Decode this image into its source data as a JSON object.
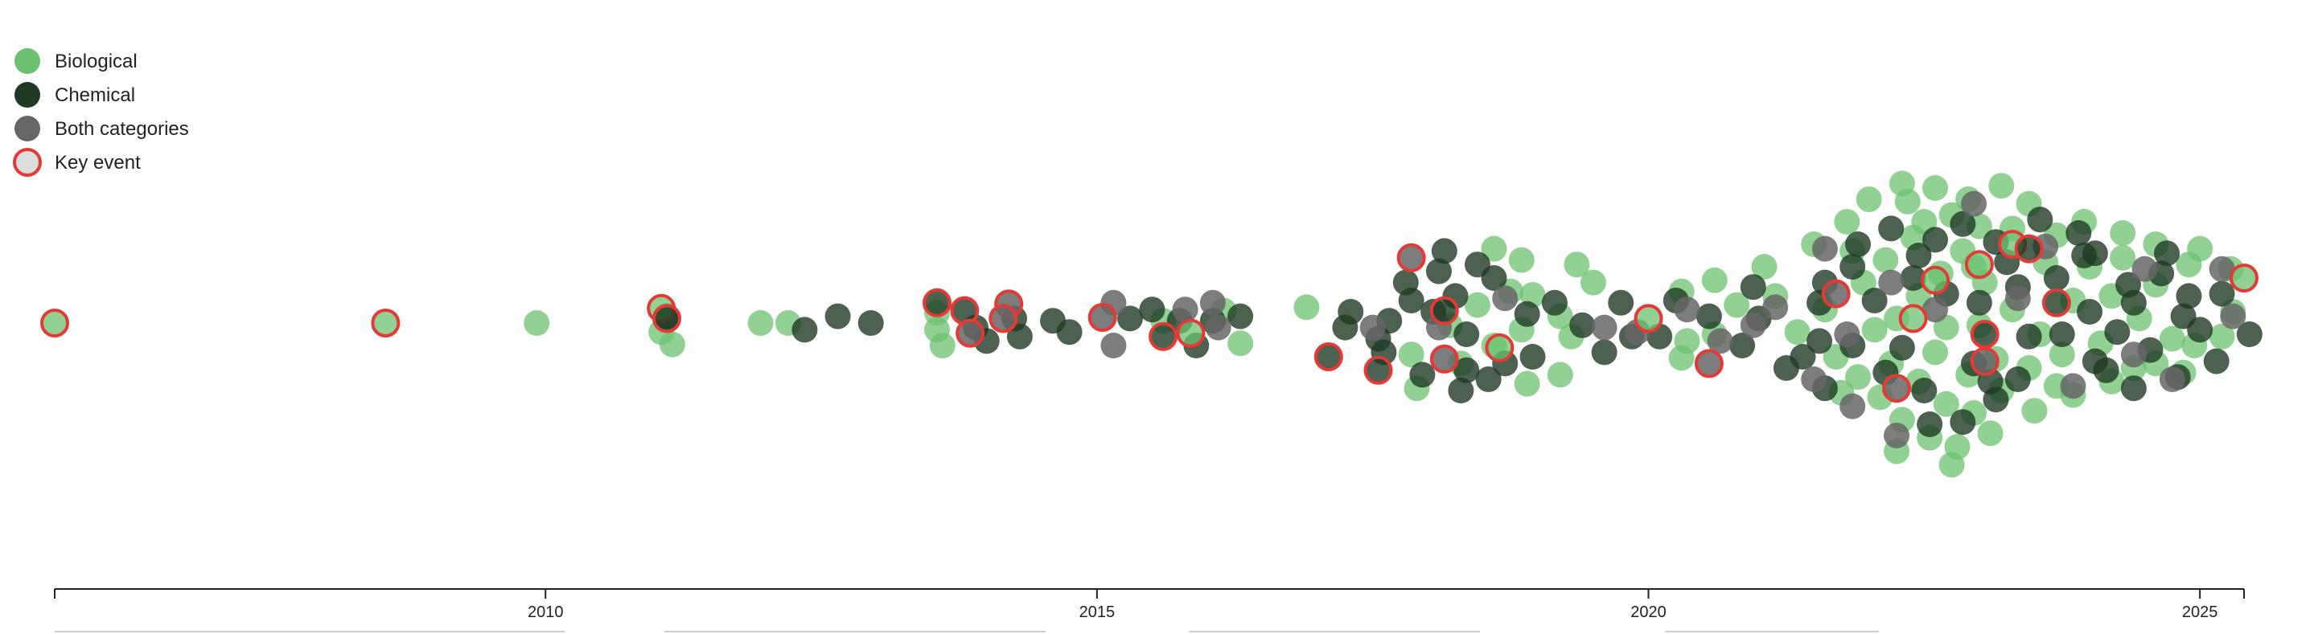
{
  "chart_data": {
    "type": "scatter",
    "title": "",
    "xlabel": "",
    "ylabel": "",
    "xlim": [
      2005.55,
      2025.4
    ],
    "x_ticks": [
      2010,
      2015,
      2020,
      2025
    ],
    "x_tick_labels": [
      "2010",
      "2015",
      "2020",
      "2025"
    ],
    "legend": {
      "placement": "top-left",
      "entries": [
        {
          "key": "bio",
          "label": "Biological"
        },
        {
          "key": "chem",
          "label": "Chemical"
        },
        {
          "key": "both",
          "label": "Both categories"
        },
        {
          "key": "key",
          "label": "Key event"
        }
      ]
    },
    "colors": {
      "bio": "#6cc16f",
      "chem": "#1f3a24",
      "both": "#666666",
      "key_outline": "#e53935",
      "key_fill_legend": "#dddddd",
      "axis": "#222222"
    },
    "series": [
      {
        "key": "bio",
        "name": "Biological",
        "values": [
          [
            2009.92,
            0
          ],
          [
            2011.05,
            -0.4
          ],
          [
            2011.15,
            -0.95
          ],
          [
            2011.95,
            0
          ],
          [
            2012.2,
            0
          ],
          [
            2013.55,
            -0.3
          ],
          [
            2013.55,
            0.45
          ],
          [
            2013.6,
            -1.0
          ],
          [
            2015.6,
            0.1
          ],
          [
            2016.3,
            -0.9
          ],
          [
            2016.15,
            0.55
          ],
          [
            2016.9,
            0.7
          ],
          [
            2017.9,
            -2.9
          ],
          [
            2017.85,
            -1.4
          ],
          [
            2018.2,
            -0.1
          ],
          [
            2018.45,
            0.8
          ],
          [
            2018.6,
            -1.0
          ],
          [
            2018.75,
            1.4
          ],
          [
            2018.9,
            -2.7
          ],
          [
            2018.95,
            1.25
          ],
          [
            2019.2,
            0.3
          ],
          [
            2019.3,
            -0.6
          ],
          [
            2019.35,
            2.6
          ],
          [
            2018.6,
            3.3
          ],
          [
            2018.85,
            2.8
          ],
          [
            2019.5,
            1.8
          ],
          [
            2018.3,
            -1.8
          ],
          [
            2018.85,
            -0.3
          ],
          [
            2019.2,
            -2.3
          ],
          [
            2020.3,
            1.4
          ],
          [
            2020.6,
            1.9
          ],
          [
            2020.35,
            -0.8
          ],
          [
            2020.3,
            -1.55
          ],
          [
            2020.6,
            -0.5
          ],
          [
            2020.8,
            0.8
          ],
          [
            2021.05,
            2.5
          ],
          [
            2021.5,
            3.5
          ],
          [
            2021.8,
            4.5
          ],
          [
            2022.0,
            5.5
          ],
          [
            2022.3,
            6.2
          ],
          [
            2022.6,
            6.0
          ],
          [
            2022.9,
            5.5
          ],
          [
            2023.2,
            6.1
          ],
          [
            2023.45,
            5.3
          ],
          [
            2021.7,
            -1.5
          ],
          [
            2021.9,
            -2.4
          ],
          [
            2022.1,
            -3.3
          ],
          [
            2022.3,
            -4.3
          ],
          [
            2022.55,
            -5.1
          ],
          [
            2022.8,
            -5.5
          ],
          [
            2023.1,
            -4.9
          ],
          [
            2023.5,
            -3.9
          ],
          [
            2023.85,
            -3.2
          ],
          [
            2024.2,
            -2.6
          ],
          [
            2024.6,
            -1.8
          ],
          [
            2024.95,
            -1.0
          ],
          [
            2025.2,
            -0.6
          ],
          [
            2025.3,
            0.5
          ],
          [
            2025.28,
            2.4
          ],
          [
            2025.0,
            3.3
          ],
          [
            2024.6,
            3.5
          ],
          [
            2024.3,
            4.0
          ],
          [
            2023.95,
            4.5
          ],
          [
            2023.7,
            3.9
          ],
          [
            2022.25,
            0.2
          ],
          [
            2022.45,
            1.2
          ],
          [
            2022.65,
            2.2
          ],
          [
            2022.85,
            3.2
          ],
          [
            2023.05,
            1.8
          ],
          [
            2023.3,
            0.6
          ],
          [
            2023.55,
            -0.5
          ],
          [
            2023.75,
            -1.4
          ],
          [
            2022.6,
            -1.3
          ],
          [
            2022.9,
            -2.3
          ],
          [
            2022.7,
            -0.2
          ],
          [
            2023.0,
            -0.1
          ],
          [
            2021.95,
            1.8
          ],
          [
            2022.15,
            2.8
          ],
          [
            2022.4,
            3.8
          ],
          [
            2022.75,
            4.8
          ],
          [
            2023.3,
            4.2
          ],
          [
            2023.6,
            2.7
          ],
          [
            2024.0,
            2.5
          ],
          [
            2024.2,
            1.2
          ],
          [
            2024.45,
            0.2
          ],
          [
            2024.75,
            -0.7
          ],
          [
            2024.4,
            -2.0
          ],
          [
            2023.2,
            -3.0
          ],
          [
            2022.95,
            -4.0
          ],
          [
            2022.2,
            -1.8
          ],
          [
            2021.6,
            0.6
          ],
          [
            2021.35,
            -0.4
          ],
          [
            2021.15,
            1.2
          ],
          [
            2022.45,
            -2.6
          ],
          [
            2022.05,
            -0.3
          ],
          [
            2023.45,
            -2.0
          ],
          [
            2024.1,
            -0.9
          ],
          [
            2024.6,
            1.7
          ],
          [
            2024.9,
            2.6
          ],
          [
            2022.5,
            4.5
          ],
          [
            2023.0,
            4.3
          ],
          [
            2021.85,
            3.2
          ],
          [
            2022.7,
            -3.6
          ],
          [
            2023.7,
            -2.8
          ],
          [
            2024.3,
            2.9
          ],
          [
            2022.35,
            5.4
          ],
          [
            2022.95,
            2.5
          ],
          [
            2023.15,
            -1.6
          ],
          [
            2021.75,
            -3.1
          ],
          [
            2024.85,
            -2.2
          ],
          [
            2022.25,
            -5.7
          ],
          [
            2022.75,
            -6.3
          ],
          [
            2023.85,
            1.0
          ]
        ]
      },
      {
        "key": "chem",
        "name": "Chemical",
        "values": [
          [
            2011.1,
            0.3
          ],
          [
            2012.35,
            -0.3
          ],
          [
            2012.65,
            0.3
          ],
          [
            2012.95,
            0
          ],
          [
            2013.9,
            -0.2
          ],
          [
            2014.0,
            -0.8
          ],
          [
            2014.25,
            0.2
          ],
          [
            2014.3,
            -0.6
          ],
          [
            2014.6,
            0.1
          ],
          [
            2014.75,
            -0.4
          ],
          [
            2015.3,
            0.2
          ],
          [
            2015.5,
            0.6
          ],
          [
            2015.75,
            0.1
          ],
          [
            2015.9,
            -1.0
          ],
          [
            2016.05,
            0.1
          ],
          [
            2016.3,
            0.3
          ],
          [
            2017.25,
            -0.2
          ],
          [
            2017.3,
            0.5
          ],
          [
            2017.55,
            -0.7
          ],
          [
            2017.65,
            0.1
          ],
          [
            2017.85,
            1.0
          ],
          [
            2018.1,
            2.3
          ],
          [
            2018.25,
            1.2
          ],
          [
            2018.35,
            -0.5
          ],
          [
            2017.6,
            -1.3
          ],
          [
            2017.95,
            -2.3
          ],
          [
            2018.3,
            -3.0
          ],
          [
            2018.55,
            -2.5
          ],
          [
            2018.7,
            -1.8
          ],
          [
            2018.95,
            -1.5
          ],
          [
            2019.15,
            0.9
          ],
          [
            2019.4,
            -0.1
          ],
          [
            2019.6,
            -1.3
          ],
          [
            2019.75,
            0.9
          ],
          [
            2019.85,
            -0.6
          ],
          [
            2018.05,
            0.5
          ],
          [
            2018.6,
            2.0
          ],
          [
            2018.9,
            0.4
          ],
          [
            2017.8,
            1.8
          ],
          [
            2018.15,
            3.2
          ],
          [
            2018.45,
            2.6
          ],
          [
            2018.35,
            -2.1
          ],
          [
            2020.1,
            -0.6
          ],
          [
            2020.25,
            1.0
          ],
          [
            2020.55,
            0.3
          ],
          [
            2020.85,
            -1.0
          ],
          [
            2020.95,
            1.6
          ],
          [
            2021.0,
            0.2
          ],
          [
            2021.4,
            -1.5
          ],
          [
            2021.55,
            -0.8
          ],
          [
            2021.6,
            1.8
          ],
          [
            2021.9,
            3.5
          ],
          [
            2022.2,
            4.2
          ],
          [
            2022.45,
            3.0
          ],
          [
            2022.85,
            4.4
          ],
          [
            2023.15,
            3.6
          ],
          [
            2023.55,
            4.6
          ],
          [
            2023.9,
            4.0
          ],
          [
            2024.05,
            3.1
          ],
          [
            2024.35,
            1.7
          ],
          [
            2024.65,
            2.2
          ],
          [
            2024.9,
            1.2
          ],
          [
            2025.2,
            1.3
          ],
          [
            2025.45,
            -0.5
          ],
          [
            2025.15,
            -1.7
          ],
          [
            2024.8,
            -2.4
          ],
          [
            2024.4,
            -2.9
          ],
          [
            2024.05,
            -1.7
          ],
          [
            2023.75,
            -0.5
          ],
          [
            2023.45,
            -0.6
          ],
          [
            2023.15,
            -3.4
          ],
          [
            2022.85,
            -4.4
          ],
          [
            2022.5,
            -3.0
          ],
          [
            2022.15,
            -2.2
          ],
          [
            2021.85,
            -1.0
          ],
          [
            2021.6,
            -2.9
          ],
          [
            2022.05,
            1.0
          ],
          [
            2022.4,
            2.0
          ],
          [
            2022.7,
            1.3
          ],
          [
            2023.0,
            0.9
          ],
          [
            2023.35,
            1.6
          ],
          [
            2023.7,
            2.0
          ],
          [
            2024.0,
            0.5
          ],
          [
            2024.25,
            -0.4
          ],
          [
            2024.55,
            -1.2
          ],
          [
            2024.85,
            0.3
          ],
          [
            2022.3,
            -1.1
          ],
          [
            2022.95,
            -1.8
          ],
          [
            2023.35,
            -2.5
          ],
          [
            2024.15,
            -2.1
          ],
          [
            2022.55,
            -4.5
          ],
          [
            2023.1,
            -2.6
          ],
          [
            2021.85,
            2.5
          ],
          [
            2023.25,
            2.7
          ],
          [
            2024.4,
            0.9
          ],
          [
            2025.0,
            -0.3
          ],
          [
            2021.25,
            -2.0
          ],
          [
            2022.6,
            3.7
          ],
          [
            2023.95,
            3.0
          ],
          [
            2024.7,
            3.1
          ],
          [
            2021.55,
            0.9
          ]
        ]
      },
      {
        "key": "both",
        "name": "Both categories",
        "values": [
          [
            2015.15,
            0.9
          ],
          [
            2015.15,
            -1.0
          ],
          [
            2015.8,
            0.6
          ],
          [
            2016.1,
            -0.2
          ],
          [
            2016.05,
            0.9
          ],
          [
            2017.5,
            -0.2
          ],
          [
            2018.1,
            -0.2
          ],
          [
            2018.7,
            1.1
          ],
          [
            2019.6,
            -0.2
          ],
          [
            2019.9,
            -0.4
          ],
          [
            2020.35,
            0.6
          ],
          [
            2020.65,
            -0.8
          ],
          [
            2020.95,
            -0.1
          ],
          [
            2021.15,
            0.7
          ],
          [
            2021.5,
            -2.5
          ],
          [
            2021.6,
            3.3
          ],
          [
            2021.8,
            -0.5
          ],
          [
            2021.85,
            -3.7
          ],
          [
            2022.25,
            -5.0
          ],
          [
            2022.2,
            1.8
          ],
          [
            2022.6,
            0.6
          ],
          [
            2022.95,
            5.3
          ],
          [
            2023.6,
            3.4
          ],
          [
            2023.35,
            1.1
          ],
          [
            2023.85,
            -2.8
          ],
          [
            2024.4,
            -1.4
          ],
          [
            2024.5,
            2.4
          ],
          [
            2024.75,
            -2.5
          ],
          [
            2025.2,
            2.4
          ],
          [
            2025.3,
            0.3
          ]
        ]
      },
      {
        "key": "key",
        "name": "Key event",
        "values": [
          [
            2005.55,
            0,
            "bio"
          ],
          [
            2008.55,
            0,
            "bio"
          ],
          [
            2011.05,
            0.65,
            "bio"
          ],
          [
            2011.1,
            0.2,
            "chem"
          ],
          [
            2013.55,
            0.9,
            "chem"
          ],
          [
            2013.8,
            0.55,
            "chem"
          ],
          [
            2014.2,
            0.85,
            "both"
          ],
          [
            2013.85,
            -0.45,
            "both"
          ],
          [
            2014.15,
            0.2,
            "both"
          ],
          [
            2015.05,
            0.25,
            "both"
          ],
          [
            2015.6,
            -0.6,
            "chem"
          ],
          [
            2015.85,
            -0.45,
            "bio"
          ],
          [
            2017.1,
            -1.5,
            "chem"
          ],
          [
            2017.85,
            2.9,
            "both"
          ],
          [
            2018.15,
            0.55,
            "chem"
          ],
          [
            2017.55,
            -2.1,
            "chem"
          ],
          [
            2018.15,
            -1.6,
            "both"
          ],
          [
            2018.65,
            -1.1,
            "bio"
          ],
          [
            2020.0,
            0.2,
            "bio"
          ],
          [
            2020.55,
            -1.8,
            "both"
          ],
          [
            2021.7,
            1.3,
            "both"
          ],
          [
            2022.4,
            0.2,
            "bio"
          ],
          [
            2022.6,
            1.9,
            "bio"
          ],
          [
            2023.0,
            2.6,
            "bio"
          ],
          [
            2023.3,
            3.5,
            "bio"
          ],
          [
            2023.45,
            3.3,
            "chem"
          ],
          [
            2023.7,
            0.9,
            "chem"
          ],
          [
            2023.05,
            -0.5,
            "chem"
          ],
          [
            2023.05,
            -1.7,
            "both"
          ],
          [
            2022.25,
            -2.9,
            "both"
          ],
          [
            2025.4,
            2.0,
            "bio"
          ]
        ]
      }
    ]
  }
}
